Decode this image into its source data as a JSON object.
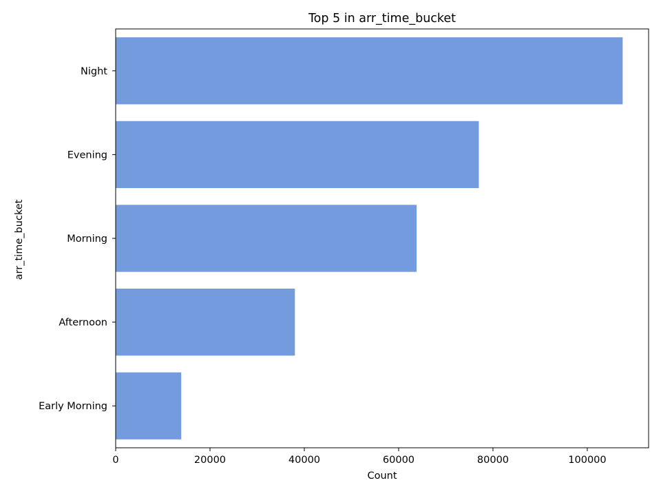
{
  "chart_data": {
    "type": "bar",
    "orientation": "horizontal",
    "title": "Top 5 in arr_time_bucket",
    "xlabel": "Count",
    "ylabel": "arr_time_bucket",
    "categories": [
      "Night",
      "Evening",
      "Morning",
      "Afternoon",
      "Early Morning"
    ],
    "values": [
      107500,
      77000,
      63800,
      38000,
      13900
    ],
    "xlim": [
      0,
      113000
    ],
    "xticks": [
      0,
      20000,
      40000,
      60000,
      80000,
      100000
    ],
    "xtick_labels": [
      "0",
      "20000",
      "40000",
      "60000",
      "80000",
      "100000"
    ],
    "bar_color": "#749BDE",
    "grid": false
  }
}
